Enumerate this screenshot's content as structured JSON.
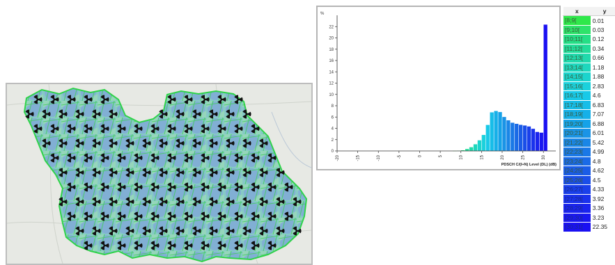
{
  "chart_data": {
    "type": "bar",
    "ylabel": "%",
    "xlabel": "PDSCH C/(I+N) Level (DL) (dB)",
    "ylim": [
      0,
      24
    ],
    "yticks": [
      0,
      2,
      4,
      6,
      8,
      10,
      12,
      14,
      16,
      18,
      20,
      22
    ],
    "xlim": [
      -20,
      33
    ],
    "xticks": [
      -20,
      -15,
      -10,
      -5,
      0,
      5,
      10,
      15,
      20,
      25,
      30
    ],
    "grid": false,
    "categories": [
      "[8;9[",
      "[9;10[",
      "[10;11[",
      "[11;12[",
      "[12;13[",
      "[13;14[",
      "[14;15[",
      "[15;16[",
      "[16;17[",
      "[17;18[",
      "[18;19[",
      "[19;20[",
      "[20;21[",
      "[21;22[",
      "[22;23[",
      "[23;24[",
      "[24;25[",
      "[25;26[",
      "[26;27[",
      "[27;28[",
      "[28;29[",
      "[29;30[",
      "[30;31["
    ],
    "bin_start": [
      8,
      9,
      10,
      11,
      12,
      13,
      14,
      15,
      16,
      17,
      18,
      19,
      20,
      21,
      22,
      23,
      24,
      25,
      26,
      27,
      28,
      29,
      30
    ],
    "values": [
      0.01,
      0.03,
      0.12,
      0.34,
      0.66,
      1.18,
      1.88,
      2.83,
      4.6,
      6.83,
      7.07,
      6.88,
      6.01,
      5.42,
      4.99,
      4.8,
      4.62,
      4.5,
      4.33,
      3.92,
      3.36,
      3.23,
      22.35
    ],
    "colors": [
      "#2fe84a",
      "#2ee36a",
      "#25df86",
      "#22dc99",
      "#20d9ac",
      "#1ed7bd",
      "#1cd4cd",
      "#1bd1dc",
      "#18c9e8",
      "#17bde8",
      "#16b0e8",
      "#15a2e8",
      "#1a94e6",
      "#1a86e6",
      "#1a78e6",
      "#1a6ae6",
      "#1a5ce6",
      "#1a4ee8",
      "#1a40ea",
      "#1a32ec",
      "#1a24ee",
      "#1a18f0",
      "#1a10f2"
    ]
  },
  "table": {
    "headers": [
      "x",
      "y"
    ]
  }
}
